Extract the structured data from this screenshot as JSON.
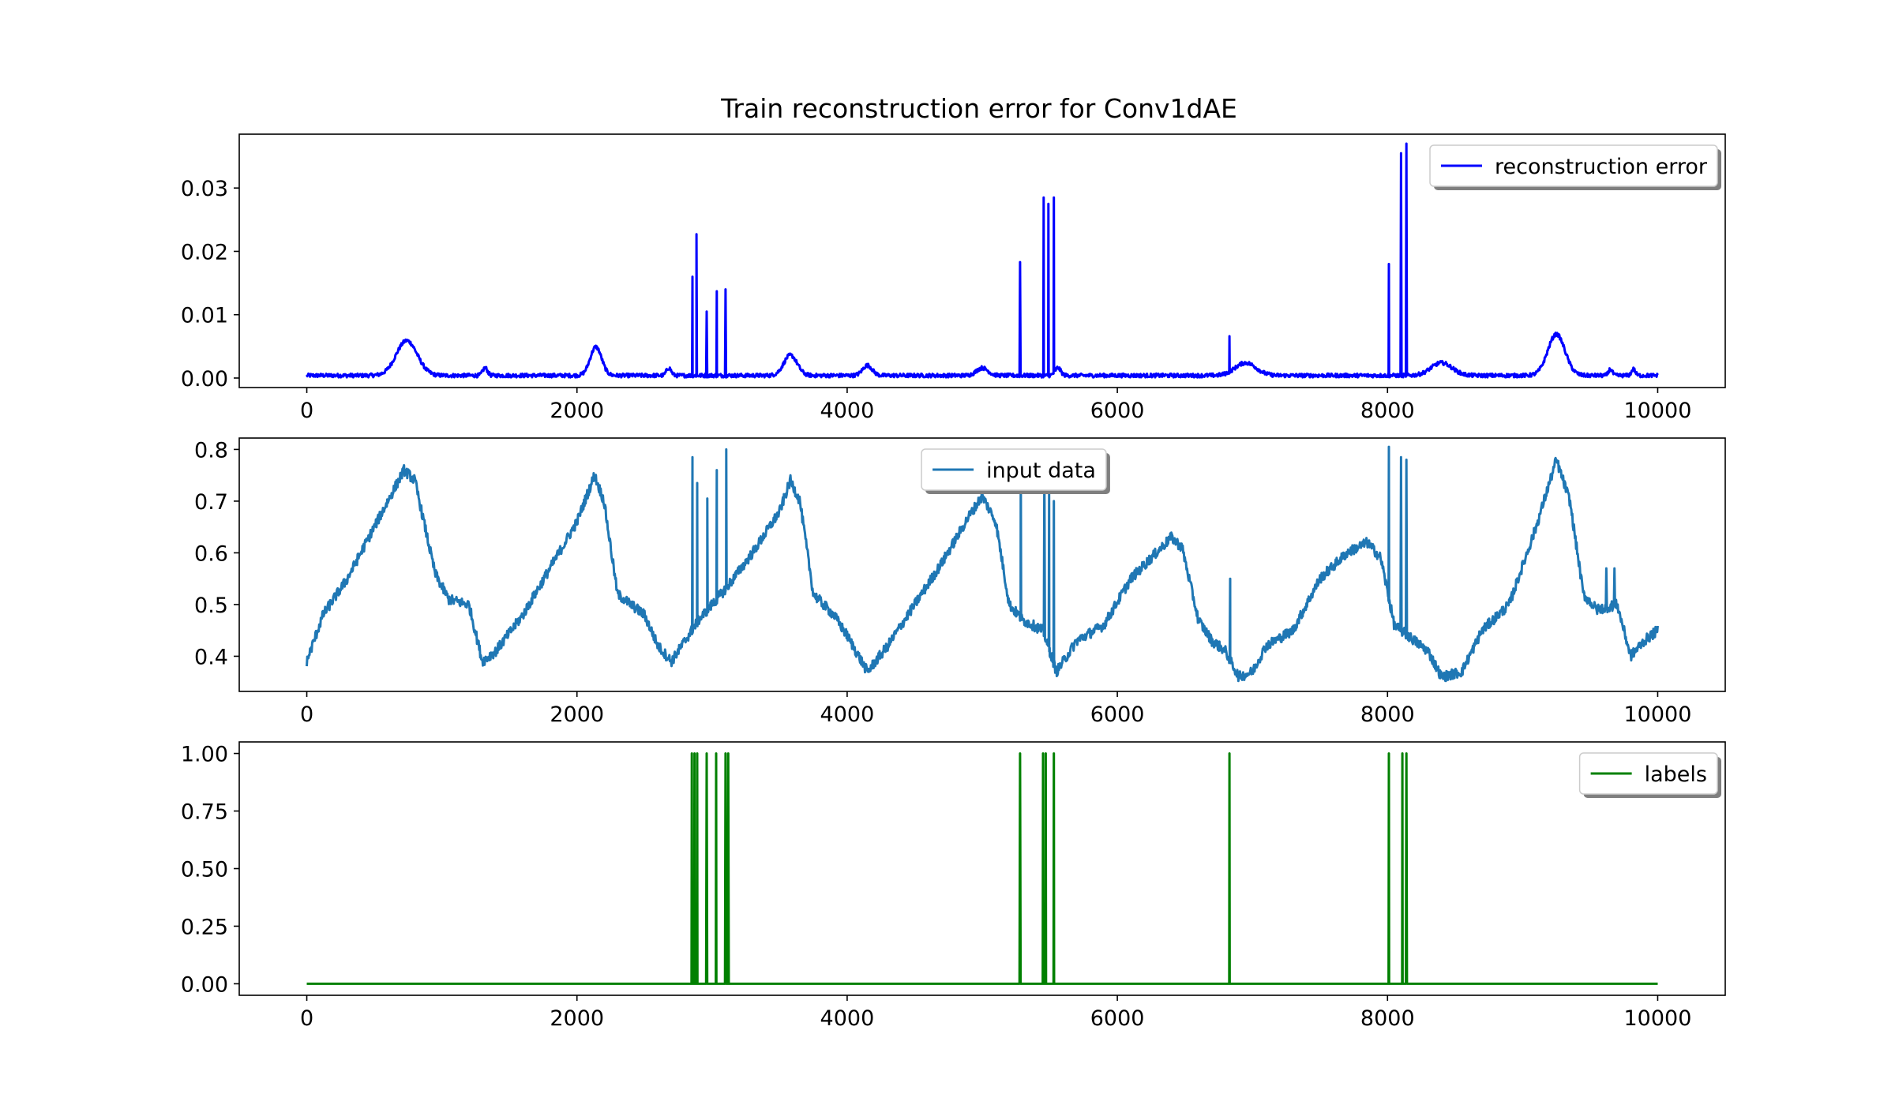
{
  "figure": {
    "title": "Train reconstruction error for Conv1dAE"
  },
  "chart_data": [
    {
      "type": "line",
      "legend_placement": "upper-right",
      "grid": false,
      "xlim": [
        -500,
        10500
      ],
      "ylim": [
        -0.0015,
        0.0385
      ],
      "x_ticks": [
        0,
        2000,
        4000,
        6000,
        8000,
        10000
      ],
      "x_tick_labels": [
        "0",
        "2000",
        "4000",
        "6000",
        "8000",
        "10000"
      ],
      "y_ticks": [
        0.0,
        0.01,
        0.02,
        0.03
      ],
      "y_tick_labels": [
        "0.00",
        "0.01",
        "0.02",
        "0.03"
      ],
      "series": [
        {
          "name": "reconstruction error",
          "color": "#0000ff",
          "baseline": 0.0004,
          "noise": 0.0003,
          "bumps": [
            {
              "x": 740,
              "height": 0.0055,
              "width": 110
            },
            {
              "x": 1320,
              "height": 0.0012,
              "width": 25
            },
            {
              "x": 2140,
              "height": 0.0045,
              "width": 60
            },
            {
              "x": 2680,
              "height": 0.0012,
              "width": 25
            },
            {
              "x": 3580,
              "height": 0.0032,
              "width": 70
            },
            {
              "x": 4150,
              "height": 0.0016,
              "width": 50
            },
            {
              "x": 5000,
              "height": 0.0012,
              "width": 60
            },
            {
              "x": 5560,
              "height": 0.0012,
              "width": 30
            },
            {
              "x": 6950,
              "height": 0.002,
              "width": 110
            },
            {
              "x": 8400,
              "height": 0.002,
              "width": 110
            },
            {
              "x": 9250,
              "height": 0.0065,
              "width": 90
            },
            {
              "x": 9650,
              "height": 0.001,
              "width": 20
            },
            {
              "x": 9820,
              "height": 0.001,
              "width": 20
            }
          ],
          "spikes": [
            {
              "x": 2855,
              "y": 0.016
            },
            {
              "x": 2885,
              "y": 0.0227
            },
            {
              "x": 2960,
              "y": 0.0105
            },
            {
              "x": 3035,
              "y": 0.0137
            },
            {
              "x": 3100,
              "y": 0.014
            },
            {
              "x": 5280,
              "y": 0.0183
            },
            {
              "x": 5455,
              "y": 0.0285
            },
            {
              "x": 5490,
              "y": 0.0275
            },
            {
              "x": 5530,
              "y": 0.0285
            },
            {
              "x": 6830,
              "y": 0.0066
            },
            {
              "x": 8010,
              "y": 0.018
            },
            {
              "x": 8100,
              "y": 0.0355
            },
            {
              "x": 8140,
              "y": 0.037
            }
          ]
        }
      ]
    },
    {
      "type": "line",
      "legend_placement": "upper-center",
      "grid": false,
      "xlim": [
        -500,
        10500
      ],
      "ylim": [
        0.332,
        0.822
      ],
      "x_ticks": [
        0,
        2000,
        4000,
        6000,
        8000,
        10000
      ],
      "x_tick_labels": [
        "0",
        "2000",
        "4000",
        "6000",
        "8000",
        "10000"
      ],
      "y_ticks": [
        0.4,
        0.5,
        0.6,
        0.7,
        0.8
      ],
      "y_tick_labels": [
        "0.4",
        "0.5",
        "0.6",
        "0.7",
        "0.8"
      ],
      "series": [
        {
          "name": "input data",
          "color": "#1f77b4",
          "noise": 0.01,
          "anchors": [
            [
              0,
              0.39
            ],
            [
              120,
              0.48
            ],
            [
              300,
              0.55
            ],
            [
              500,
              0.65
            ],
            [
              720,
              0.76
            ],
            [
              800,
              0.74
            ],
            [
              950,
              0.56
            ],
            [
              1050,
              0.51
            ],
            [
              1200,
              0.5
            ],
            [
              1300,
              0.39
            ],
            [
              1400,
              0.41
            ],
            [
              1600,
              0.48
            ],
            [
              1800,
              0.57
            ],
            [
              2000,
              0.66
            ],
            [
              2130,
              0.75
            ],
            [
              2200,
              0.7
            ],
            [
              2300,
              0.52
            ],
            [
              2400,
              0.5
            ],
            [
              2500,
              0.48
            ],
            [
              2600,
              0.42
            ],
            [
              2700,
              0.39
            ],
            [
              2800,
              0.43
            ],
            [
              2900,
              0.47
            ],
            [
              3100,
              0.53
            ],
            [
              3300,
              0.6
            ],
            [
              3500,
              0.68
            ],
            [
              3580,
              0.74
            ],
            [
              3650,
              0.7
            ],
            [
              3750,
              0.52
            ],
            [
              3900,
              0.48
            ],
            [
              4000,
              0.44
            ],
            [
              4150,
              0.37
            ],
            [
              4300,
              0.42
            ],
            [
              4500,
              0.5
            ],
            [
              4700,
              0.58
            ],
            [
              4900,
              0.67
            ],
            [
              5000,
              0.71
            ],
            [
              5100,
              0.66
            ],
            [
              5200,
              0.5
            ],
            [
              5300,
              0.47
            ],
            [
              5450,
              0.45
            ],
            [
              5550,
              0.37
            ],
            [
              5700,
              0.43
            ],
            [
              5900,
              0.46
            ],
            [
              6100,
              0.55
            ],
            [
              6250,
              0.59
            ],
            [
              6400,
              0.63
            ],
            [
              6480,
              0.61
            ],
            [
              6600,
              0.47
            ],
            [
              6700,
              0.43
            ],
            [
              6800,
              0.41
            ],
            [
              6900,
              0.36
            ],
            [
              7000,
              0.37
            ],
            [
              7100,
              0.42
            ],
            [
              7300,
              0.45
            ],
            [
              7500,
              0.55
            ],
            [
              7700,
              0.6
            ],
            [
              7850,
              0.62
            ],
            [
              7950,
              0.59
            ],
            [
              8050,
              0.46
            ],
            [
              8200,
              0.43
            ],
            [
              8300,
              0.41
            ],
            [
              8400,
              0.36
            ],
            [
              8550,
              0.37
            ],
            [
              8700,
              0.45
            ],
            [
              8900,
              0.5
            ],
            [
              9100,
              0.65
            ],
            [
              9250,
              0.78
            ],
            [
              9350,
              0.7
            ],
            [
              9450,
              0.52
            ],
            [
              9550,
              0.49
            ],
            [
              9700,
              0.5
            ],
            [
              9800,
              0.4
            ],
            [
              9900,
              0.43
            ],
            [
              10000,
              0.45
            ]
          ],
          "spikes": [
            {
              "x": 2855,
              "y": 0.785
            },
            {
              "x": 2890,
              "y": 0.735
            },
            {
              "x": 2965,
              "y": 0.705
            },
            {
              "x": 3035,
              "y": 0.76
            },
            {
              "x": 3105,
              "y": 0.8
            },
            {
              "x": 5285,
              "y": 0.78
            },
            {
              "x": 5460,
              "y": 0.775
            },
            {
              "x": 5495,
              "y": 0.72
            },
            {
              "x": 5530,
              "y": 0.7
            },
            {
              "x": 6835,
              "y": 0.55
            },
            {
              "x": 8010,
              "y": 0.805
            },
            {
              "x": 8100,
              "y": 0.785
            },
            {
              "x": 8140,
              "y": 0.78
            },
            {
              "x": 9620,
              "y": 0.57
            },
            {
              "x": 9680,
              "y": 0.57
            }
          ]
        }
      ]
    },
    {
      "type": "line",
      "legend_placement": "upper-right",
      "grid": false,
      "xlim": [
        -500,
        10500
      ],
      "ylim": [
        -0.05,
        1.05
      ],
      "x_ticks": [
        0,
        2000,
        4000,
        6000,
        8000,
        10000
      ],
      "x_tick_labels": [
        "0",
        "2000",
        "4000",
        "6000",
        "8000",
        "10000"
      ],
      "y_ticks": [
        0.0,
        0.25,
        0.5,
        0.75,
        1.0
      ],
      "y_tick_labels": [
        "0.00",
        "0.25",
        "0.50",
        "0.75",
        "1.00"
      ],
      "series": [
        {
          "name": "labels",
          "color": "#008000",
          "baseline": 0,
          "spikes": [
            {
              "x": 2850,
              "y": 1
            },
            {
              "x": 2870,
              "y": 1
            },
            {
              "x": 2890,
              "y": 1
            },
            {
              "x": 2960,
              "y": 1
            },
            {
              "x": 3030,
              "y": 1
            },
            {
              "x": 3100,
              "y": 1
            },
            {
              "x": 3120,
              "y": 1
            },
            {
              "x": 5280,
              "y": 1
            },
            {
              "x": 5450,
              "y": 1
            },
            {
              "x": 5470,
              "y": 1
            },
            {
              "x": 5530,
              "y": 1
            },
            {
              "x": 6830,
              "y": 1
            },
            {
              "x": 8010,
              "y": 1
            },
            {
              "x": 8110,
              "y": 1
            },
            {
              "x": 8140,
              "y": 1
            }
          ]
        }
      ]
    }
  ]
}
